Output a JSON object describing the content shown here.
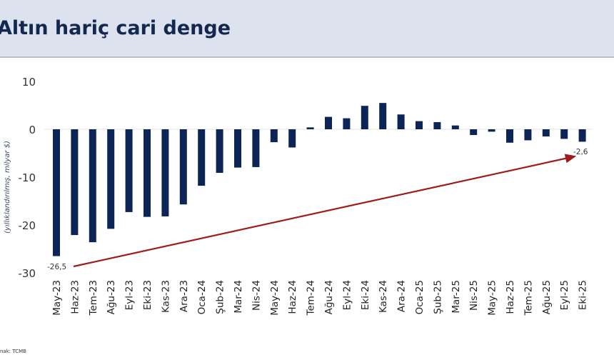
{
  "header": {
    "title": "Altın hariç cari denge"
  },
  "source": "nak: TCMB",
  "chart_data": {
    "type": "bar",
    "title": "",
    "ylabel": "(yıllıklandırılmış, milyar $)",
    "xlabel": "",
    "ylim": [
      -30,
      10
    ],
    "yticks": [
      10,
      0,
      -10,
      -20,
      -30
    ],
    "grid": false,
    "bar_color": "#0d2457",
    "categories": [
      "May-23",
      "Haz-23",
      "Tem-23",
      "Ağu-23",
      "Eyl-23",
      "Eki-23",
      "Kas-23",
      "Ara-23",
      "Oca-24",
      "Şub-24",
      "Mar-24",
      "Nis-24",
      "May-24",
      "Haz-24",
      "Tem-24",
      "Ağu-24",
      "Eyl-24",
      "Eki-24",
      "Kas-24",
      "Ara-24",
      "Oca-25",
      "Şub-25",
      "Mar-25",
      "Nis-25",
      "May-25",
      "Haz-25",
      "Tem-25",
      "Ağu-25",
      "Eyl-25",
      "Eki-25"
    ],
    "values": [
      -26.5,
      -22.1,
      -23.6,
      -20.8,
      -17.3,
      -18.3,
      -18.2,
      -15.7,
      -11.8,
      -9.1,
      -8.0,
      -7.9,
      -2.7,
      -3.8,
      0.4,
      2.6,
      2.3,
      4.9,
      5.5,
      3.1,
      1.7,
      1.5,
      0.8,
      -1.2,
      -0.5,
      -2.8,
      -2.3,
      -1.5,
      -2.0,
      -2.6
    ],
    "annotations": [
      {
        "text": "-26,5",
        "category": "May-23"
      },
      {
        "text": "-2,6",
        "category": "Eki-25"
      }
    ],
    "trend_arrow": {
      "from": "May-23",
      "to": "Eki-25",
      "color": "#a01c1c"
    }
  }
}
